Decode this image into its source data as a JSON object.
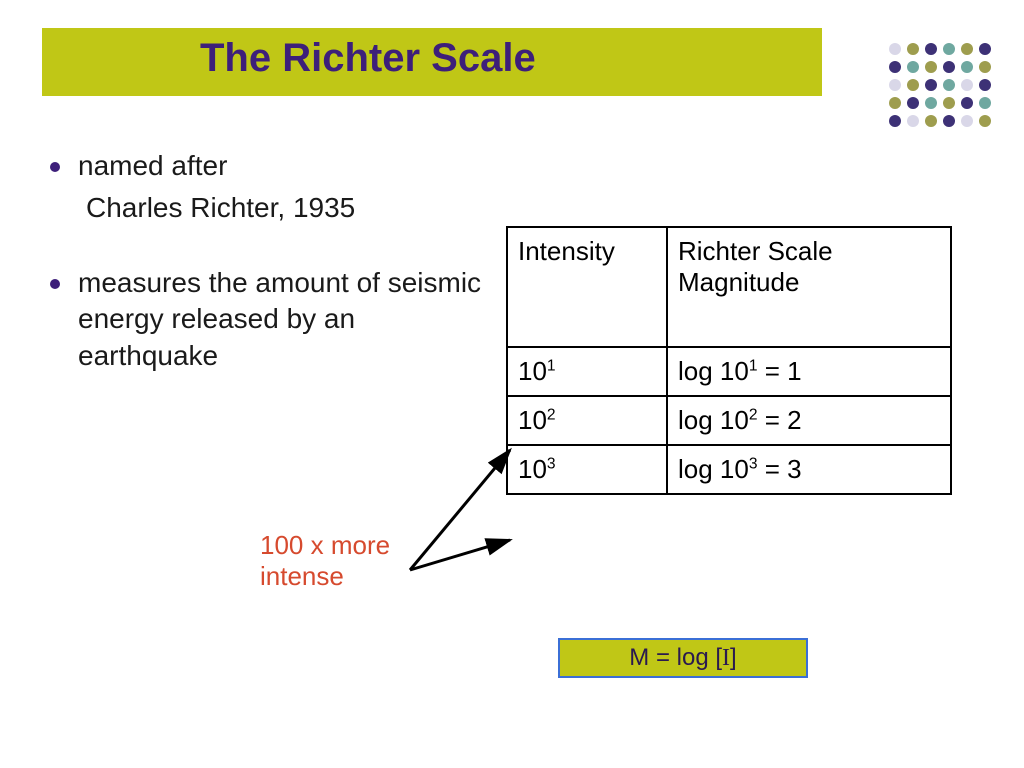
{
  "colors": {
    "title_bar_bg": "#c0c716",
    "title_text": "#3d1f7a",
    "bullet_dot": "#3d1f7a",
    "body_text": "#1a1a1a",
    "callout_text": "#d64a2e",
    "formula_bg": "#c0c716",
    "formula_border": "#3b6fd6",
    "formula_text": "#2a1a4f",
    "dot_dark": "#3d3176",
    "dot_teal": "#6fa8a0",
    "dot_olive": "#9e9d4e",
    "dot_light": "#d9d7e8"
  },
  "title": "The Richter Scale",
  "bullets": {
    "item1_line1": "named after",
    "item1_line2": "Charles Richter, 1935",
    "item2": "measures the amount of seismic energy released by an earthquake"
  },
  "table": {
    "header_col1": "Intensity",
    "header_col2": "Richter Scale Magnitude",
    "r1c1_base": "10",
    "r1c1_sup": "1",
    "r1c2_pre": "log 10",
    "r1c2_sup": "1",
    "r1c2_post": " = 1",
    "r2c1_base": "10",
    "r2c1_sup": "2",
    "r2c2_pre": "log 10",
    "r2c2_sup": "2",
    "r2c2_post": " = 2",
    "r3c1_base": "10",
    "r3c1_sup": "3",
    "r3c2_pre": "log 10",
    "r3c2_sup": "3",
    "r3c2_post": " = 3"
  },
  "callout": {
    "line1": "100 x more",
    "line2": "intense"
  },
  "formula": {
    "pre": "M = log [ ",
    "var": "I",
    "post": " ]"
  },
  "dot_grid": {
    "rows": [
      [
        "dot_light",
        "dot_olive",
        "dot_dark",
        "dot_teal",
        "dot_olive",
        "dot_dark"
      ],
      [
        "dot_dark",
        "dot_teal",
        "dot_olive",
        "dot_dark",
        "dot_teal",
        "dot_olive"
      ],
      [
        "dot_light",
        "dot_olive",
        "dot_dark",
        "dot_teal",
        "dot_light",
        "dot_dark"
      ],
      [
        "dot_olive",
        "dot_dark",
        "dot_teal",
        "dot_olive",
        "dot_dark",
        "dot_teal"
      ],
      [
        "dot_dark",
        "dot_light",
        "dot_olive",
        "dot_dark",
        "dot_light",
        "dot_olive"
      ]
    ]
  }
}
